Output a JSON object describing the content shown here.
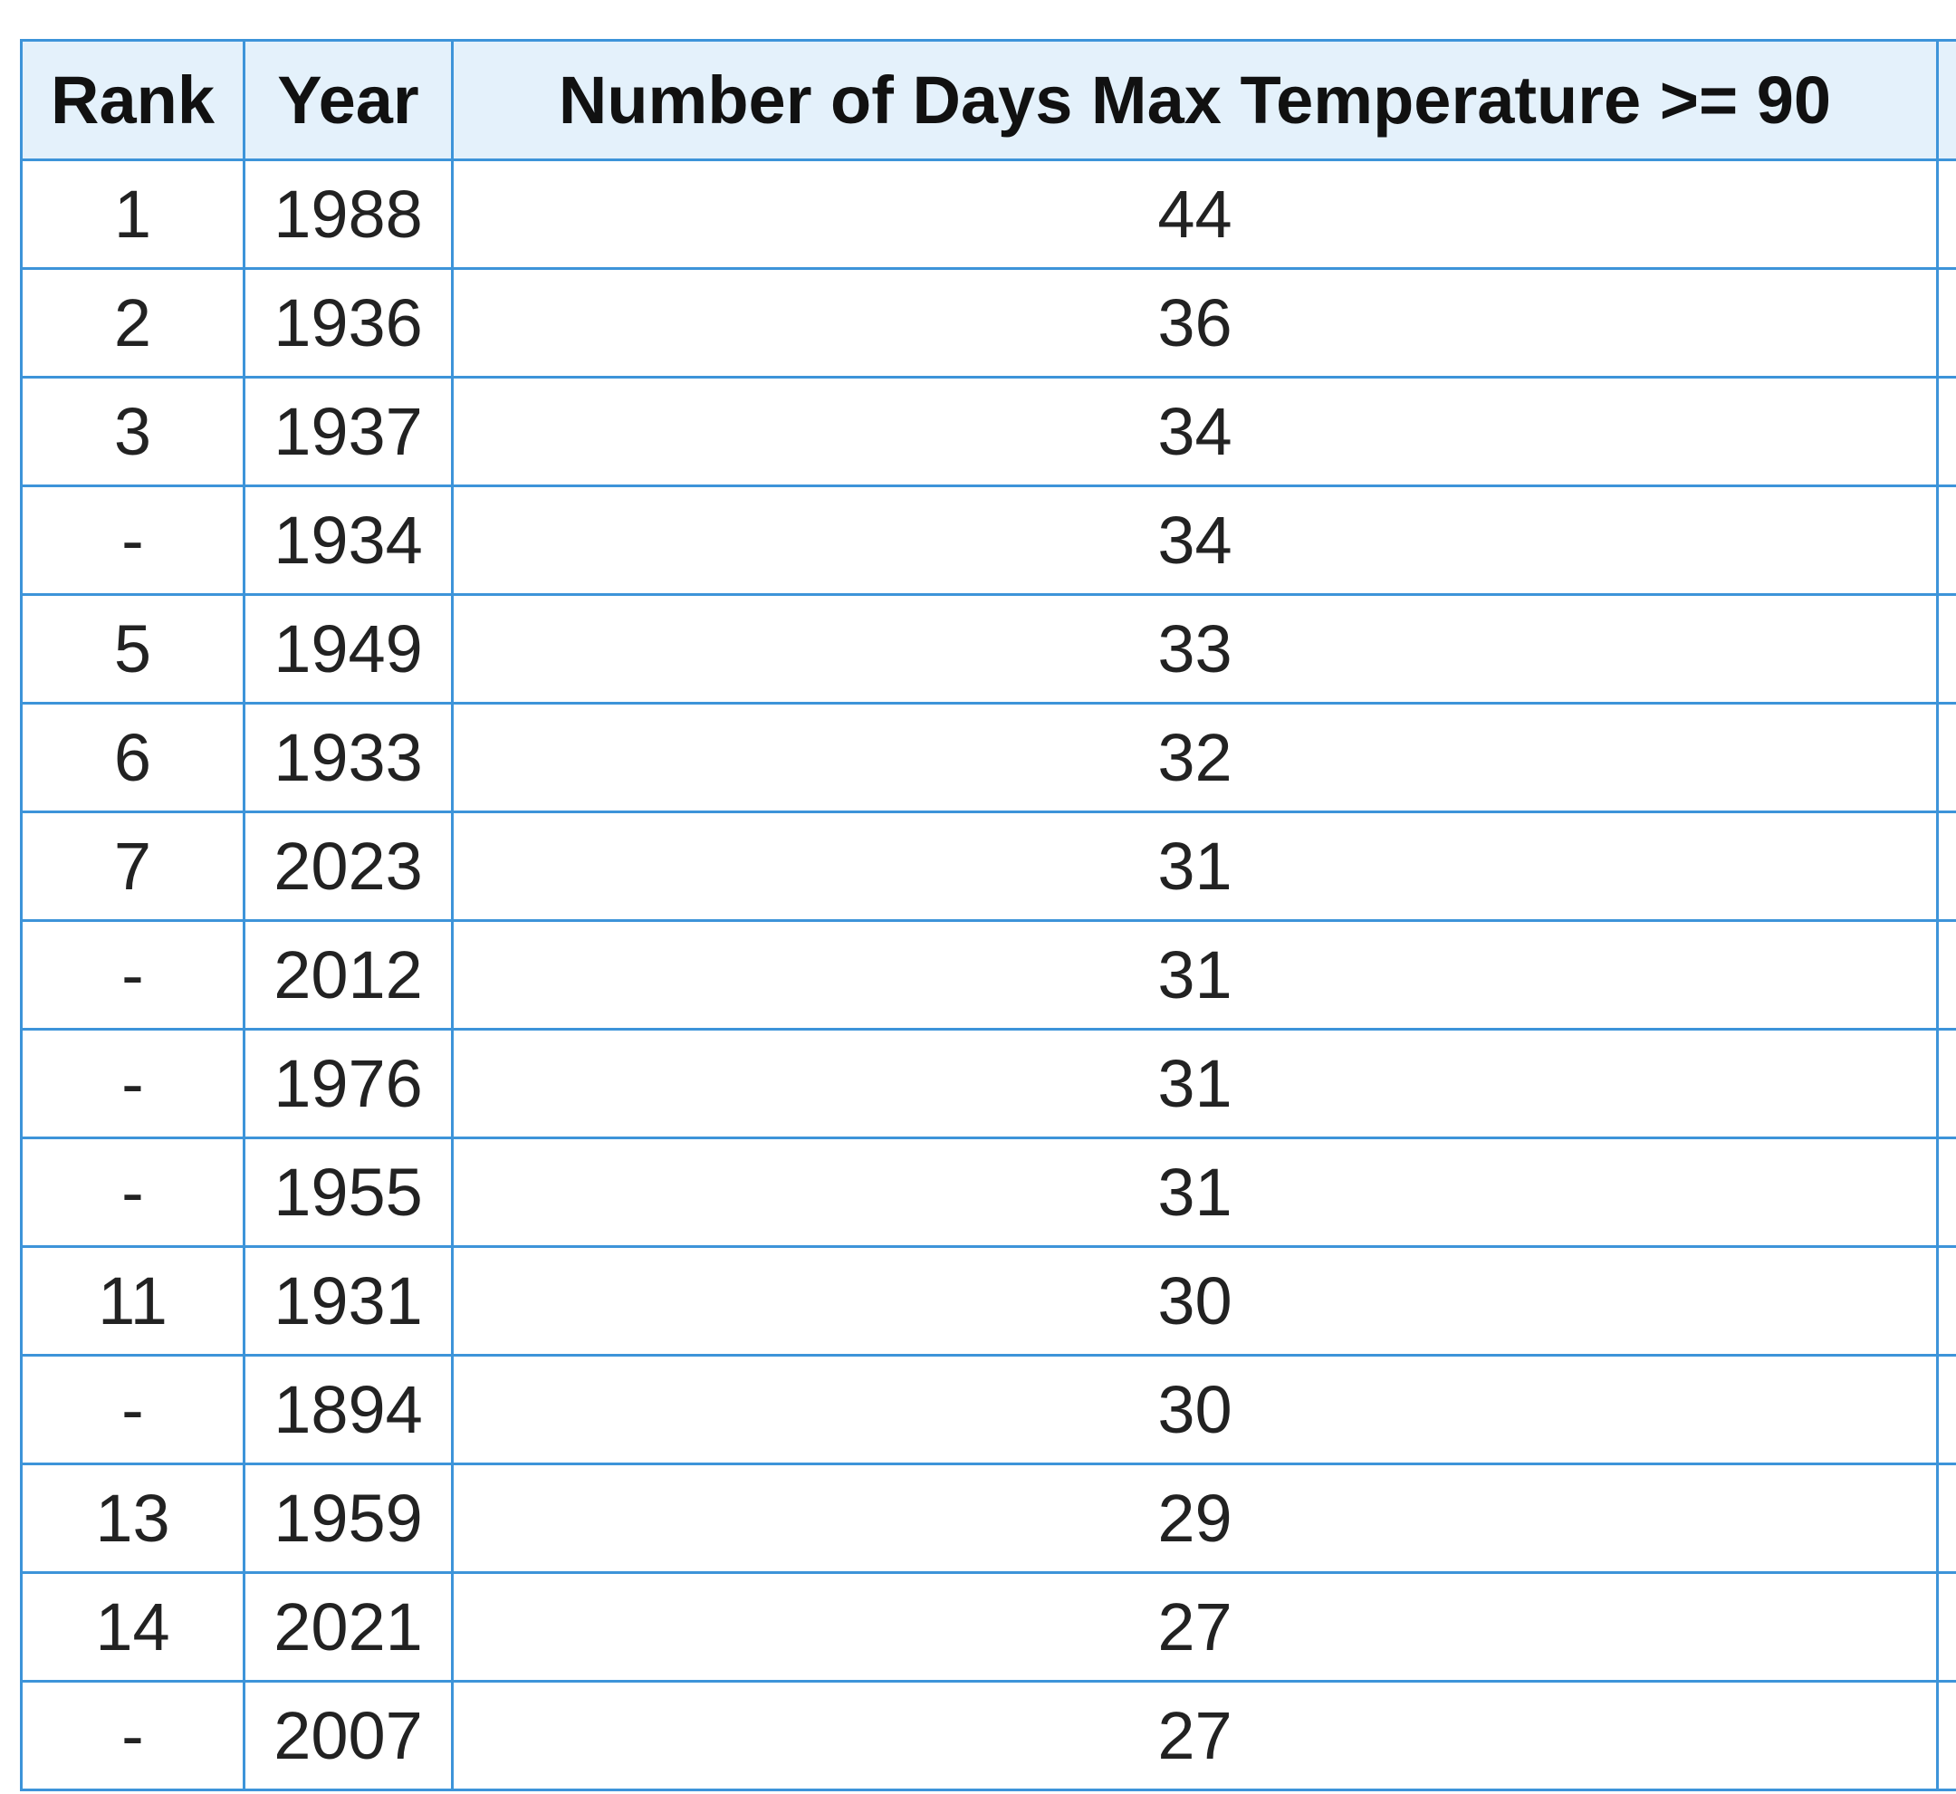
{
  "table": {
    "columns": [
      "Rank",
      "Year",
      "Number of Days Max Temperature >= 90",
      ""
    ],
    "rows": [
      {
        "rank": "1",
        "year": "1988",
        "days": "44"
      },
      {
        "rank": "2",
        "year": "1936",
        "days": "36"
      },
      {
        "rank": "3",
        "year": "1937",
        "days": "34"
      },
      {
        "rank": "-",
        "year": "1934",
        "days": "34"
      },
      {
        "rank": "5",
        "year": "1949",
        "days": "33"
      },
      {
        "rank": "6",
        "year": "1933",
        "days": "32"
      },
      {
        "rank": "7",
        "year": "2023",
        "days": "31"
      },
      {
        "rank": "-",
        "year": "2012",
        "days": "31"
      },
      {
        "rank": "-",
        "year": "1976",
        "days": "31"
      },
      {
        "rank": "-",
        "year": "1955",
        "days": "31"
      },
      {
        "rank": "11",
        "year": "1931",
        "days": "30"
      },
      {
        "rank": "-",
        "year": "1894",
        "days": "30"
      },
      {
        "rank": "13",
        "year": "1959",
        "days": "29"
      },
      {
        "rank": "14",
        "year": "2021",
        "days": "27"
      },
      {
        "rank": "-",
        "year": "2007",
        "days": "27"
      }
    ]
  },
  "colors": {
    "border": "#3d94d9",
    "header_background": "#e4f1fb",
    "cell_background": "#ffffff"
  }
}
